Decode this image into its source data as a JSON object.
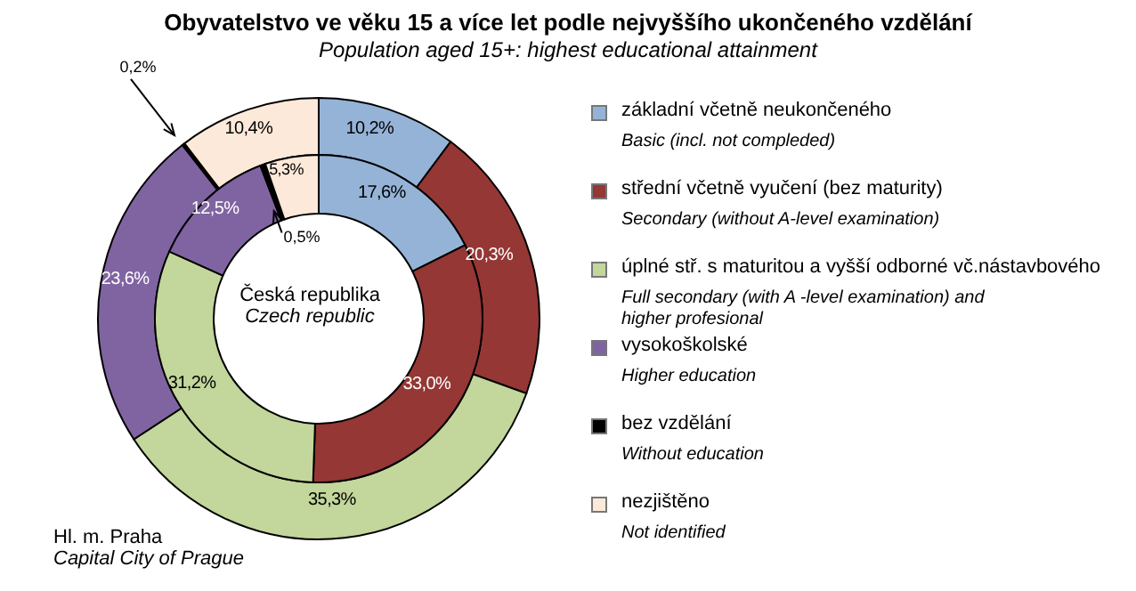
{
  "chart_data": {
    "type": "donut",
    "title": "Obyvatelstvo ve věku 15 a více let podle nejvyššího ukončeného vzdělání",
    "subtitle": "Population aged 15+: highest educational attainment",
    "categories": [
      "základní včetně neukončeného\nBasic (incl. not compleded)",
      "střední včetně vyučení (bez maturity)\nSecondary  (without A-level  examination)",
      "úplné stř. s maturitou a vyšší odborné vč.nástavbového\nFull secondary  (with  A -level  examination) and\nhigher profesional",
      "vysokoškolské\nHigher education",
      "bez vzdělání\nWithout education",
      "nezjištěno\nNot identified"
    ],
    "colors": [
      "#95b3d7",
      "#953735",
      "#c3d69b",
      "#8064a2",
      "#000000",
      "#fde9d9"
    ],
    "series": [
      {
        "name": "Hl. m. Praha\nCapital City of Prague",
        "values": [
          10.2,
          20.3,
          35.3,
          23.6,
          0.2,
          10.4
        ],
        "value_labels": [
          "10,2%",
          "20,3%",
          "35,3%",
          "23,6%",
          "0,2%",
          "10,4%"
        ]
      },
      {
        "name": "Česká republika\nCzech republic",
        "values": [
          17.6,
          33.0,
          31.2,
          12.5,
          0.5,
          5.3
        ],
        "value_labels": [
          "17,6%",
          "33,0%",
          "31,2%",
          "12,5%",
          "0,5%",
          "5,3%"
        ]
      }
    ],
    "legend": "right"
  }
}
